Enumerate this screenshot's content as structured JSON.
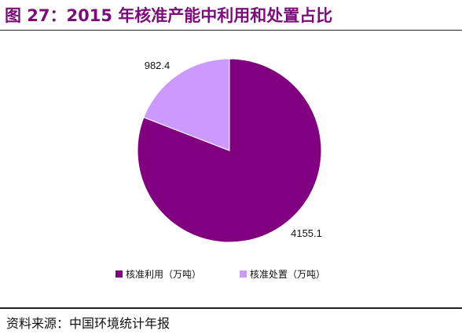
{
  "header": {
    "title": "图 27：2015 年核准产能中利用和处置占比"
  },
  "footer": {
    "source": "资料来源：中国环境统计年报"
  },
  "colors": {
    "accent": "#7a0d7a",
    "slice_1": "#800080",
    "slice_2": "#cc99ff"
  },
  "chart_data": {
    "type": "pie",
    "title": "",
    "categories": [
      "核准利用（万吨）",
      "核准处置（万吨）"
    ],
    "values": [
      4155.1,
      982.4
    ],
    "data_labels": [
      "4155.1",
      "982.4"
    ],
    "start_angle_deg": 0,
    "direction": "clockwise",
    "legend_position": "bottom"
  }
}
